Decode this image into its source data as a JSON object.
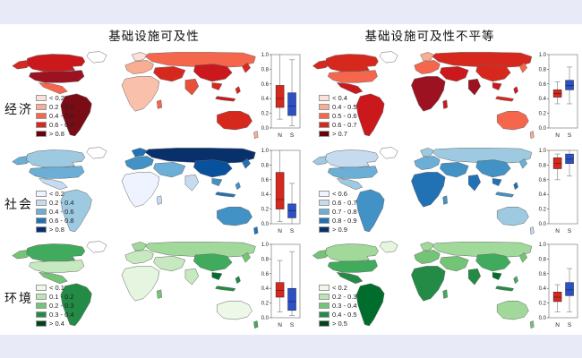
{
  "figure": {
    "columns": [
      {
        "title": "基础设施可及性"
      },
      {
        "title": "基础设施可及性不平等"
      }
    ],
    "rows": [
      {
        "label": "经济"
      },
      {
        "label": "社会"
      },
      {
        "label": "环境"
      }
    ]
  },
  "style": {
    "margin_bar_color": "#e8eaf7",
    "n_box_color": "#d7281e",
    "s_box_color": "#2b50c8",
    "whisker_color": "#9a9a9a",
    "frame_color": "#808080",
    "land_stroke": "#666666"
  },
  "chart_data": [
    {
      "id": "economic-accessibility",
      "row_label": "经济",
      "column_title": "基础设施可及性",
      "type": "choropleth_map_with_boxplot",
      "legend": {
        "labels": [
          "< 0.2",
          "0.2 - 0.4",
          "0.4 - 0.6",
          "0.6 - 0.8",
          "> 0.8"
        ],
        "colors": [
          "#fde0d9",
          "#f9ae91",
          "#f4674d",
          "#d7281e",
          "#67000d"
        ]
      },
      "boxplot": {
        "categories": [
          "N",
          "S"
        ],
        "ylim": [
          0.0,
          1.0
        ],
        "yticks": [
          0.0,
          0.2,
          0.4,
          0.6,
          0.8,
          1.0
        ],
        "series": [
          {
            "name": "N",
            "low": 0.12,
            "q1": 0.28,
            "median": 0.4,
            "q3": 0.58,
            "high": 1.0
          },
          {
            "name": "S",
            "low": 0.03,
            "q1": 0.17,
            "median": 0.3,
            "q3": 0.48,
            "high": 0.93
          }
        ]
      },
      "map_colors": {
        "alaska": "#d7281e",
        "canada": "#cb181d",
        "greenland": "#ffffff",
        "usa": "#9c1220",
        "mexico": "#f4674d",
        "south_america": "#7a0c16",
        "scandinavia": "#fde0d9",
        "europe": "#f9ae91",
        "africa": "#f9c0ab",
        "madagascar": "#f4674d",
        "russia": "#f4674d",
        "central_asia": "#d7281e",
        "india": "#e8503a",
        "china": "#cb181d",
        "se_asia": "#d7281e",
        "indonesia": "#cb181d",
        "philippines": "#d7281e",
        "japan": "#d7281e",
        "australia": "#d7281e",
        "new_zealand": "#f9ae91"
      }
    },
    {
      "id": "economic-inequality",
      "row_label": "经济",
      "column_title": "基础设施可及性不平等",
      "type": "choropleth_map_with_boxplot",
      "legend": {
        "labels": [
          "< 0.4",
          "0.4 - 0.5",
          "0.5 - 0.6",
          "0.6 - 0.7",
          "> 0.7"
        ],
        "colors": [
          "#fde0d9",
          "#f9ae91",
          "#f4674d",
          "#d7281e",
          "#67000d"
        ]
      },
      "boxplot": {
        "categories": [
          "N",
          "S"
        ],
        "ylim": [
          0.0,
          1.0
        ],
        "yticks": [
          0.0,
          0.2,
          0.4,
          0.6,
          0.8,
          1.0
        ],
        "series": [
          {
            "name": "N",
            "low": 0.33,
            "q1": 0.42,
            "median": 0.47,
            "q3": 0.52,
            "high": 0.63
          },
          {
            "name": "S",
            "low": 0.33,
            "q1": 0.52,
            "median": 0.58,
            "q3": 0.65,
            "high": 0.83
          }
        ]
      },
      "map_colors": {
        "alaska": "#d7281e",
        "canada": "#d7281e",
        "greenland": "#ffffff",
        "usa": "#f4674d",
        "mexico": "#cb181d",
        "south_america": "#cb181d",
        "scandinavia": "#f9ae91",
        "europe": "#f4674d",
        "africa": "#9c1220",
        "madagascar": "#cb181d",
        "russia": "#d7281e",
        "central_asia": "#cb181d",
        "india": "#9c1220",
        "china": "#d7281e",
        "se_asia": "#cb181d",
        "indonesia": "#d7281e",
        "philippines": "#cb181d",
        "japan": "#f4674d",
        "australia": "#f4674d",
        "new_zealand": "#f9ae91"
      }
    },
    {
      "id": "social-accessibility",
      "row_label": "社会",
      "column_title": "基础设施可及性",
      "type": "choropleth_map_with_boxplot",
      "legend": {
        "labels": [
          "< 0.2",
          "0.2 - 0.4",
          "0.4 - 0.6",
          "0.6 - 0.8",
          "> 0.8"
        ],
        "colors": [
          "#eff3ff",
          "#c6dbef",
          "#6baed6",
          "#2171b5",
          "#08306b"
        ]
      },
      "boxplot": {
        "categories": [
          "N",
          "S"
        ],
        "ylim": [
          0.0,
          1.0
        ],
        "yticks": [
          0.0,
          0.2,
          0.4,
          0.6,
          0.8,
          1.0
        ],
        "series": [
          {
            "name": "N",
            "low": 0.03,
            "q1": 0.2,
            "median": 0.33,
            "q3": 0.7,
            "high": 1.0
          },
          {
            "name": "S",
            "low": 0.0,
            "q1": 0.08,
            "median": 0.18,
            "q3": 0.27,
            "high": 0.55
          }
        ]
      },
      "map_colors": {
        "alaska": "#6baed6",
        "canada": "#9ecae1",
        "greenland": "#ffffff",
        "usa": "#6baed6",
        "mexico": "#c6dbef",
        "south_america": "#9ecae1",
        "scandinavia": "#2171b5",
        "europe": "#4292c6",
        "africa": "#eff3ff",
        "madagascar": "#c6dbef",
        "russia": "#08306b",
        "central_asia": "#6baed6",
        "india": "#c6dbef",
        "china": "#08519c",
        "se_asia": "#4292c6",
        "indonesia": "#2171b5",
        "philippines": "#4292c6",
        "japan": "#2171b5",
        "australia": "#4292c6",
        "new_zealand": "#2171b5"
      }
    },
    {
      "id": "social-inequality",
      "row_label": "社会",
      "column_title": "基础设施可及性不平等",
      "type": "choropleth_map_with_boxplot",
      "legend": {
        "labels": [
          "< 0.6",
          "0.6 - 0.7",
          "0.7 - 0.8",
          "0.8 - 0.9",
          "> 0.9"
        ],
        "colors": [
          "#eff3ff",
          "#c6dbef",
          "#6baed6",
          "#2171b5",
          "#08306b"
        ]
      },
      "boxplot": {
        "categories": [
          "N",
          "S"
        ],
        "ylim": [
          0.0,
          1.0
        ],
        "yticks": [
          0.0,
          0.2,
          0.4,
          0.6,
          0.8,
          1.0
        ],
        "series": [
          {
            "name": "N",
            "low": 0.6,
            "q1": 0.75,
            "median": 0.82,
            "q3": 0.9,
            "high": 0.95
          },
          {
            "name": "S",
            "low": 0.65,
            "q1": 0.82,
            "median": 0.88,
            "q3": 0.95,
            "high": 1.0
          }
        ]
      },
      "map_colors": {
        "alaska": "#9ecae1",
        "canada": "#c6dbef",
        "greenland": "#ffffff",
        "usa": "#6baed6",
        "mexico": "#9ecae1",
        "south_america": "#4292c6",
        "scandinavia": "#9ecae1",
        "europe": "#6baed6",
        "africa": "#2171b5",
        "madagascar": "#4292c6",
        "russia": "#9ecae1",
        "central_asia": "#4292c6",
        "india": "#2171b5",
        "china": "#4292c6",
        "se_asia": "#2171b5",
        "indonesia": "#4292c6",
        "philippines": "#2171b5",
        "japan": "#6baed6",
        "australia": "#9ecae1",
        "new_zealand": "#c6dbef"
      }
    },
    {
      "id": "environment-accessibility",
      "row_label": "环境",
      "column_title": "基础设施可及性",
      "type": "choropleth_map_with_boxplot",
      "legend": {
        "labels": [
          "< 0.1",
          "0.1 - 0.2",
          "0.2 - 0.3",
          "0.3 - 0.4",
          "> 0.4"
        ],
        "colors": [
          "#edf8e9",
          "#bae4b3",
          "#74c476",
          "#238b45",
          "#00441b"
        ]
      },
      "boxplot": {
        "categories": [
          "N",
          "S"
        ],
        "ylim": [
          0.0,
          1.0
        ],
        "yticks": [
          0.0,
          0.2,
          0.4,
          0.6,
          0.8,
          1.0
        ],
        "series": [
          {
            "name": "N",
            "low": 0.08,
            "q1": 0.28,
            "median": 0.37,
            "q3": 0.48,
            "high": 0.78
          },
          {
            "name": "S",
            "low": 0.03,
            "q1": 0.1,
            "median": 0.22,
            "q3": 0.4,
            "high": 0.9
          }
        ]
      },
      "map_colors": {
        "alaska": "#74c476",
        "canada": "#41ab5d",
        "greenland": "#ffffff",
        "usa": "#c7e9c0",
        "mexico": "#74c476",
        "south_america": "#238b45",
        "scandinavia": "#a1d99b",
        "europe": "#c7e9c0",
        "africa": "#e5f5e0",
        "madagascar": "#74c476",
        "russia": "#a1d99b",
        "central_asia": "#c7e9c0",
        "india": "#c7e9c0",
        "china": "#41ab5d",
        "se_asia": "#006d2c",
        "indonesia": "#238b45",
        "philippines": "#238b45",
        "japan": "#74c476",
        "australia": "#edf8e9",
        "new_zealand": "#41ab5d"
      }
    },
    {
      "id": "environment-inequality",
      "row_label": "环境",
      "column_title": "基础设施可及性不平等",
      "type": "choropleth_map_with_boxplot",
      "legend": {
        "labels": [
          "< 0.2",
          "0.2 - 0.3",
          "0.3 - 0.4",
          "0.4 - 0.5",
          "> 0.5"
        ],
        "colors": [
          "#edf8e9",
          "#bae4b3",
          "#74c476",
          "#238b45",
          "#00441b"
        ]
      },
      "boxplot": {
        "categories": [
          "N",
          "S"
        ],
        "ylim": [
          0.0,
          1.0
        ],
        "yticks": [
          0.0,
          0.2,
          0.4,
          0.6,
          0.8,
          1.0
        ],
        "series": [
          {
            "name": "N",
            "low": 0.08,
            "q1": 0.22,
            "median": 0.28,
            "q3": 0.35,
            "high": 0.45
          },
          {
            "name": "S",
            "low": 0.08,
            "q1": 0.3,
            "median": 0.38,
            "q3": 0.48,
            "high": 0.67
          }
        ]
      },
      "map_colors": {
        "alaska": "#74c476",
        "canada": "#a1d99b",
        "greenland": "#e5f5e0",
        "usa": "#41ab5d",
        "mexico": "#238b45",
        "south_america": "#006d2c",
        "scandinavia": "#a1d99b",
        "europe": "#74c476",
        "africa": "#238b45",
        "madagascar": "#41ab5d",
        "russia": "#a1d99b",
        "central_asia": "#74c476",
        "india": "#238b45",
        "china": "#41ab5d",
        "se_asia": "#006d2c",
        "indonesia": "#238b45",
        "philippines": "#41ab5d",
        "japan": "#74c476",
        "australia": "#a1d99b",
        "new_zealand": "#74c476"
      }
    }
  ]
}
